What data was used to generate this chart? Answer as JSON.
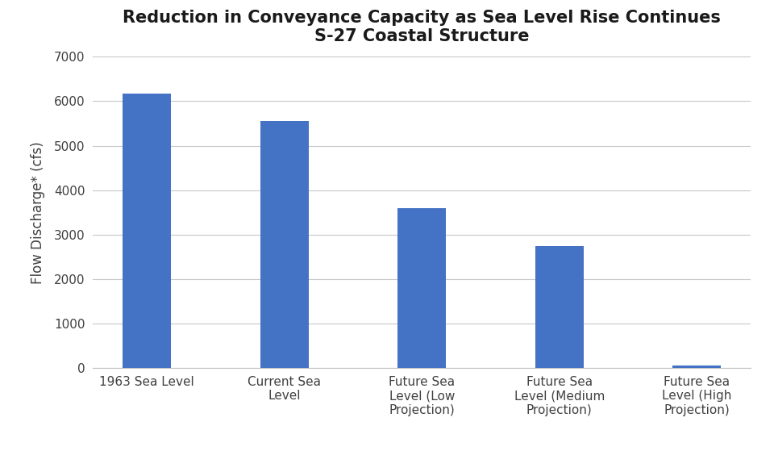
{
  "title_line1": "Reduction in Conveyance Capacity as Sea Level Rise Continues",
  "title_line2": "S-27 Coastal Structure",
  "categories": [
    "1963 Sea Level",
    "Current Sea\nLevel",
    "Future Sea\nLevel (Low\nProjection)",
    "Future Sea\nLevel (Medium\nProjection)",
    "Future Sea\nLevel (High\nProjection)"
  ],
  "values": [
    6170,
    5550,
    3600,
    2750,
    60
  ],
  "bar_color": "#4472C4",
  "ylabel": "Flow Discharge* (cfs)",
  "ylim": [
    0,
    7000
  ],
  "yticks": [
    0,
    1000,
    2000,
    3000,
    4000,
    5000,
    6000,
    7000
  ],
  "background_color": "#FFFFFF",
  "grid_color": "#C8C8C8",
  "title_fontsize": 15,
  "ylabel_fontsize": 12,
  "tick_fontsize": 11,
  "bar_width": 0.35
}
